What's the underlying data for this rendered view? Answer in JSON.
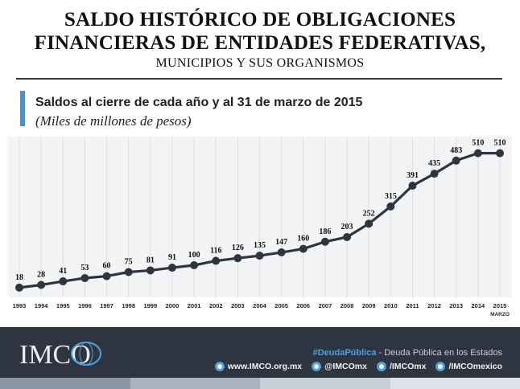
{
  "header": {
    "title_line1": "SALDO HISTÓRICO DE OBLIGACIONES",
    "title_line2": "FINANCIERAS DE ENTIDADES FEDERATIVAS,",
    "subtitle": "MUNICIPIOS Y SUS ORGANISMOS"
  },
  "chart_heading": "Saldos al cierre de cada año y al 31 de marzo de 2015",
  "chart_units": "(Miles de millones de pesos)",
  "chart_data": {
    "type": "line",
    "categories": [
      "1993",
      "1994",
      "1995",
      "1996",
      "1997",
      "1998",
      "1999",
      "2000",
      "2001",
      "2002",
      "2003",
      "2004",
      "2005",
      "2006",
      "2007",
      "2008",
      "2009",
      "2010",
      "2011",
      "2012",
      "2013",
      "2014",
      "2015"
    ],
    "last_category_note": "MARZO",
    "values": [
      18,
      28,
      41,
      53,
      60,
      75,
      81,
      91,
      100,
      116,
      126,
      135,
      147,
      160,
      186,
      203,
      252,
      315,
      391,
      435,
      483,
      510,
      510
    ],
    "ylim": [
      0,
      600
    ],
    "grid": "vertical",
    "legend": "none",
    "line_color": "#2f3440"
  },
  "footer": {
    "hashtag": "#DeudaPública",
    "hashtag_rest": " - Deuda Pública en los Estados",
    "links": [
      {
        "icon": "globe-icon",
        "label": "www.IMCO.org.mx"
      },
      {
        "icon": "twitter-icon",
        "label": "@IMCOmx"
      },
      {
        "icon": "facebook-icon",
        "label": "/IMCOmx"
      },
      {
        "icon": "youtube-icon",
        "label": "/IMCOmexico"
      }
    ],
    "logo_text": "IMCO",
    "strip_colors": [
      "#8a96a6",
      "#a9b3c0",
      "#c7ced8",
      "#dfe3e9"
    ]
  }
}
